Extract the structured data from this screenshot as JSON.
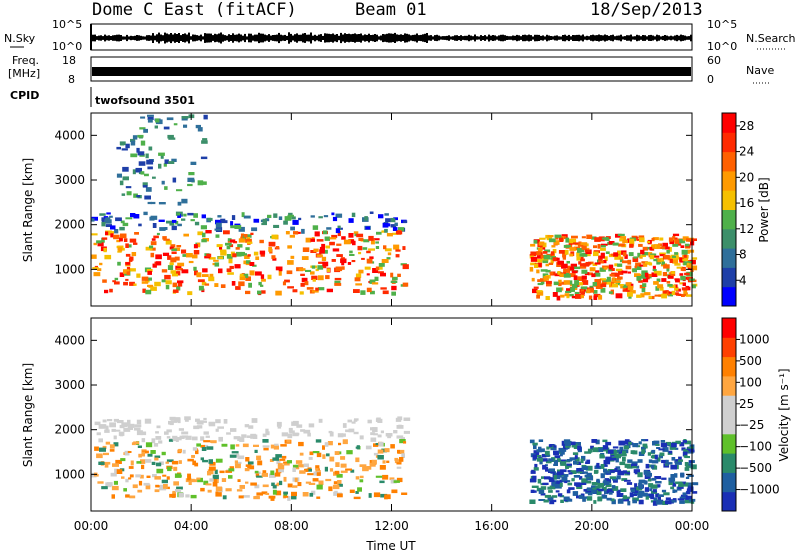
{
  "header": {
    "radar": "Dome C East (fitACF)",
    "beam": "Beam 01",
    "date": "18/Sep/2013"
  },
  "noise_panel": {
    "left_label": "N.Sky",
    "left_ticks": [
      "10^5",
      "10^0"
    ],
    "right_label": "N.Search",
    "right_ticks": [
      "10^5",
      "10^0"
    ]
  },
  "freq_panel": {
    "left_label_1": "Freq.",
    "left_label_2": "[MHz]",
    "left_ticks": [
      "18",
      "8"
    ],
    "right_label": "Nave",
    "right_ticks": [
      "60",
      "0"
    ]
  },
  "cpid_panel": {
    "label": "CPID",
    "value": "twofsound 3501"
  },
  "colors": {
    "power_scale": [
      "#0000ff",
      "#1e3fa8",
      "#2f6f9a",
      "#3c8f6a",
      "#4fb04a",
      "#f5c000",
      "#ff9a00",
      "#ff6000",
      "#ff2a00",
      "#ff0000"
    ],
    "velocity_scale": [
      "#1a2fb5",
      "#1f5fa0",
      "#2a8a6a",
      "#5fc02a",
      "#cfcfcf",
      "#cfcfcf",
      "#ffa640",
      "#ff8000",
      "#ff4000",
      "#ff0000"
    ]
  },
  "chart_data": [
    {
      "type": "heatmap",
      "name": "power",
      "ylabel": "Slant Range [km]",
      "xlabel": "",
      "x_ticks": [
        "00:00",
        "04:00",
        "08:00",
        "12:00",
        "16:00",
        "20:00",
        "00:00"
      ],
      "x_hours": [
        0,
        24
      ],
      "y_ticks": [
        "1000",
        "2000",
        "3000",
        "4000"
      ],
      "y_range_km": [
        180,
        4500
      ],
      "colorbar": {
        "label": "Power [dB]",
        "ticks": [
          "4",
          "8",
          "12",
          "16",
          "20",
          "24",
          "28"
        ],
        "range": [
          0,
          30
        ]
      },
      "echo_regions": [
        {
          "t": [
            0,
            12.5
          ],
          "r": [
            500,
            2300
          ],
          "level": "high"
        },
        {
          "t": [
            17.5,
            24
          ],
          "r": [
            400,
            1800
          ],
          "level": "high"
        },
        {
          "t": [
            1,
            4.5
          ],
          "r": [
            2500,
            4500
          ],
          "level": "low"
        }
      ]
    },
    {
      "type": "heatmap",
      "name": "velocity",
      "ylabel": "Slant Range [km]",
      "xlabel": "Time UT",
      "x_ticks": [
        "00:00",
        "04:00",
        "08:00",
        "12:00",
        "16:00",
        "20:00",
        "00:00"
      ],
      "x_hours": [
        0,
        24
      ],
      "y_ticks": [
        "1000",
        "2000",
        "3000",
        "4000"
      ],
      "y_range_km": [
        180,
        4500
      ],
      "colorbar": {
        "label": "Velocity [m s⁻¹]",
        "ticks": [
          "1000",
          "500",
          "100",
          "25",
          "−25",
          "−100",
          "−500",
          "−1000"
        ]
      },
      "echo_regions": [
        {
          "t": [
            0,
            12.5
          ],
          "r": [
            500,
            2300
          ],
          "level": "mixed"
        },
        {
          "t": [
            17.5,
            24
          ],
          "r": [
            400,
            1800
          ],
          "level": "mixed"
        }
      ]
    }
  ]
}
